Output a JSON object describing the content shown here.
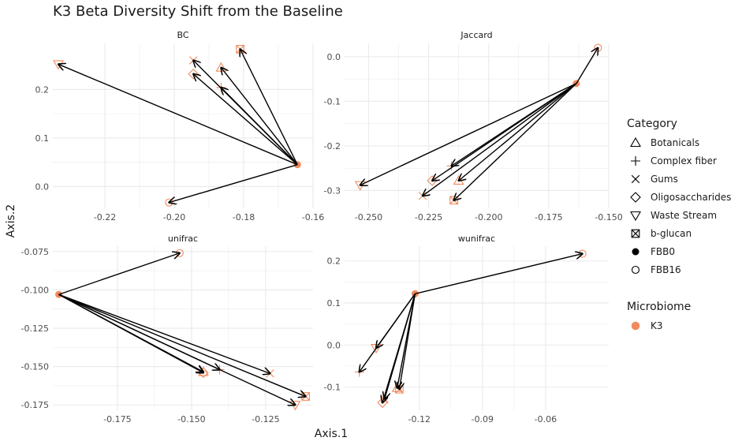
{
  "chart_data": {
    "type": "scatter",
    "title": "K3 Beta Diversity Shift from the Baseline",
    "xlabel": "Axis.1",
    "ylabel": "Axis.2",
    "grid": true,
    "legend_position": "right",
    "legends": [
      {
        "title": "Category",
        "items": [
          {
            "label": "Botanicals",
            "shape": "triangle-up"
          },
          {
            "label": "Complex fiber",
            "shape": "plus"
          },
          {
            "label": "Gums",
            "shape": "cross"
          },
          {
            "label": "Oligosaccharides",
            "shape": "diamond"
          },
          {
            "label": "Waste Stream",
            "shape": "triangle-down"
          },
          {
            "label": "b-glucan",
            "shape": "box-x"
          },
          {
            "label": "FBB0",
            "shape": "filled-circle"
          },
          {
            "label": "FBB16",
            "shape": "open-circle"
          }
        ]
      },
      {
        "title": "Microbiome",
        "items": [
          {
            "label": "K3",
            "shape": "filled-circle",
            "color": "#f08a5d"
          }
        ]
      }
    ],
    "colors": {
      "accent": "#f08a5d",
      "arrow": "#000000",
      "grid": "#ebebeb"
    },
    "panels": [
      {
        "name": "BC",
        "xlim": [
          -0.235,
          -0.16
        ],
        "ylim": [
          -0.045,
          0.295
        ],
        "xticks": [
          -0.22,
          -0.2,
          -0.18,
          -0.16
        ],
        "xtick_labels": [
          "-0.22",
          "-0.20",
          "-0.18",
          "-0.16"
        ],
        "yticks": [
          0.0,
          0.1,
          0.2
        ],
        "ytick_labels": [
          "0.0",
          "0.1",
          "0.2"
        ],
        "baseline": {
          "x": -0.1645,
          "y": 0.045
        },
        "points": [
          {
            "category": "Waste Stream",
            "x": -0.2334,
            "y": 0.252
          },
          {
            "category": "Gums",
            "x": -0.1945,
            "y": 0.26
          },
          {
            "category": "Oligosaccharides",
            "x": -0.1945,
            "y": 0.232
          },
          {
            "category": "Botanicals",
            "x": -0.1865,
            "y": 0.245
          },
          {
            "category": "b-glucan",
            "x": -0.181,
            "y": 0.283
          },
          {
            "category": "Complex fiber",
            "x": -0.1865,
            "y": 0.204
          },
          {
            "category": "FBB16",
            "x": -0.2015,
            "y": -0.033
          }
        ]
      },
      {
        "name": "Jaccard",
        "xlim": [
          -0.26,
          -0.15
        ],
        "ylim": [
          -0.34,
          0.03
        ],
        "xticks": [
          -0.25,
          -0.225,
          -0.2,
          -0.175,
          -0.15
        ],
        "xtick_labels": [
          "-0.250",
          "-0.225",
          "-0.200",
          "-0.175",
          "-0.150"
        ],
        "yticks": [
          0.0,
          -0.1,
          -0.2,
          -0.3
        ],
        "ytick_labels": [
          "0.0",
          "-0.1",
          "-0.2",
          "-0.3"
        ],
        "baseline": {
          "x": -0.1635,
          "y": -0.06
        },
        "points": [
          {
            "category": "FBB16",
            "x": -0.1545,
            "y": 0.02
          },
          {
            "category": "Waste Stream",
            "x": -0.2535,
            "y": -0.288
          },
          {
            "category": "Complex fiber",
            "x": -0.2155,
            "y": -0.245
          },
          {
            "category": "Oligosaccharides",
            "x": -0.2235,
            "y": -0.278
          },
          {
            "category": "Botanicals",
            "x": -0.2125,
            "y": -0.278
          },
          {
            "category": "Gums",
            "x": -0.2275,
            "y": -0.312
          },
          {
            "category": "b-glucan",
            "x": -0.2145,
            "y": -0.322
          }
        ]
      },
      {
        "name": "unifrac",
        "xlim": [
          -0.1968,
          -0.109
        ],
        "ylim": [
          -0.1785,
          -0.0715
        ],
        "xticks": [
          -0.175,
          -0.15,
          -0.125
        ],
        "xtick_labels": [
          "-0.175",
          "-0.150",
          "-0.125"
        ],
        "yticks": [
          -0.075,
          -0.1,
          -0.125,
          -0.15,
          -0.175
        ],
        "ytick_labels": [
          "-0.075",
          "-0.100",
          "-0.125",
          "-0.150",
          "-0.175"
        ],
        "baseline": {
          "x": -0.1948,
          "y": -0.103
        },
        "points": [
          {
            "category": "FBB16",
            "x": -0.154,
            "y": -0.076
          },
          {
            "category": "Gums",
            "x": -0.1235,
            "y": -0.1545
          },
          {
            "category": "Complex fiber",
            "x": -0.1405,
            "y": -0.152
          },
          {
            "category": "Botanicals",
            "x": -0.146,
            "y": -0.1535
          },
          {
            "category": "Oligosaccharides",
            "x": -0.146,
            "y": -0.154
          },
          {
            "category": "b-glucan",
            "x": -0.1115,
            "y": -0.1695
          },
          {
            "category": "Waste Stream",
            "x": -0.115,
            "y": -0.175
          }
        ]
      },
      {
        "name": "wunifrac",
        "xlim": [
          -0.1555,
          -0.03
        ],
        "ylim": [
          -0.155,
          0.235
        ],
        "xticks": [
          -0.12,
          -0.09,
          -0.06
        ],
        "xtick_labels": [
          "-0.12",
          "-0.09",
          "-0.06"
        ],
        "yticks": [
          0.2,
          0.1,
          0.0,
          -0.1
        ],
        "ytick_labels": [
          "0.2",
          "0.1",
          "0.0",
          "-0.1"
        ],
        "baseline": {
          "x": -0.122,
          "y": 0.122
        },
        "points": [
          {
            "category": "FBB16",
            "x": -0.0425,
            "y": 0.217
          },
          {
            "category": "Waste Stream",
            "x": -0.1405,
            "y": -0.007
          },
          {
            "category": "Complex fiber",
            "x": -0.1485,
            "y": -0.064
          },
          {
            "category": "Botanicals",
            "x": -0.1305,
            "y": -0.102
          },
          {
            "category": "b-glucan",
            "x": -0.1295,
            "y": -0.105
          },
          {
            "category": "Gums",
            "x": -0.1365,
            "y": -0.128
          },
          {
            "category": "Oligosaccharides",
            "x": -0.1375,
            "y": -0.137
          }
        ]
      }
    ]
  }
}
